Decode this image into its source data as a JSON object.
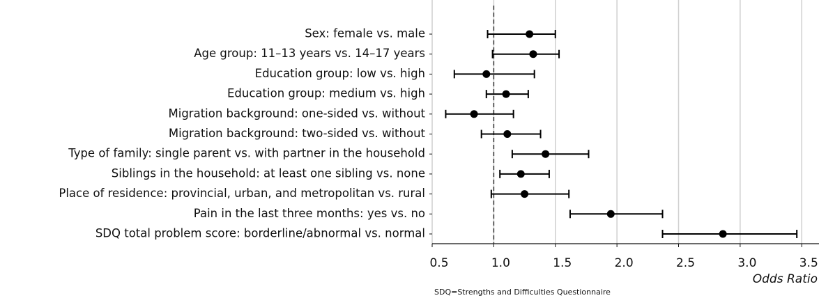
{
  "chart_data": {
    "type": "forest",
    "categories": [
      "Sex: female vs. male",
      "Age group: 11–13 years vs. 14–17 years",
      "Education group: low vs. high",
      "Education group: medium vs. high",
      "Migration background: one-sided vs. without",
      "Migration background: two-sided vs. without",
      "Type of family: single parent vs. with partner in the household",
      "Siblings in the household: at least one sibling vs. none",
      "Place of residence: provincial, urban, and metropolitan vs. rural",
      "Pain in the last three months: yes vs. no",
      "SDQ total problem score: borderline/abnormal vs. normal"
    ],
    "values": [
      1.29,
      1.32,
      0.94,
      1.1,
      0.84,
      1.11,
      1.42,
      1.22,
      1.25,
      1.95,
      2.86
    ],
    "ci_low": [
      0.95,
      0.99,
      0.68,
      0.94,
      0.61,
      0.9,
      1.15,
      1.05,
      0.98,
      1.62,
      2.37
    ],
    "ci_high": [
      1.5,
      1.53,
      1.33,
      1.28,
      1.16,
      1.38,
      1.77,
      1.45,
      1.61,
      2.37,
      3.46
    ],
    "color": "#000000",
    "xlim": [
      0.5,
      3.64
    ],
    "xticks": [
      {
        "value": 0.5,
        "label": "0.5"
      },
      {
        "value": 1.0,
        "label": "1.0"
      },
      {
        "value": 1.5,
        "label": "1.5"
      },
      {
        "value": 2.0,
        "label": "2.0"
      },
      {
        "value": 2.5,
        "label": "2.5"
      },
      {
        "value": 3.0,
        "label": "3.0"
      },
      {
        "value": 3.5,
        "label": "3.5"
      }
    ],
    "grid": true,
    "reference_line": 1,
    "xlabel": "Odds Ratio",
    "note": "SDQ=Strengths and Difficulties Questionnaire"
  }
}
